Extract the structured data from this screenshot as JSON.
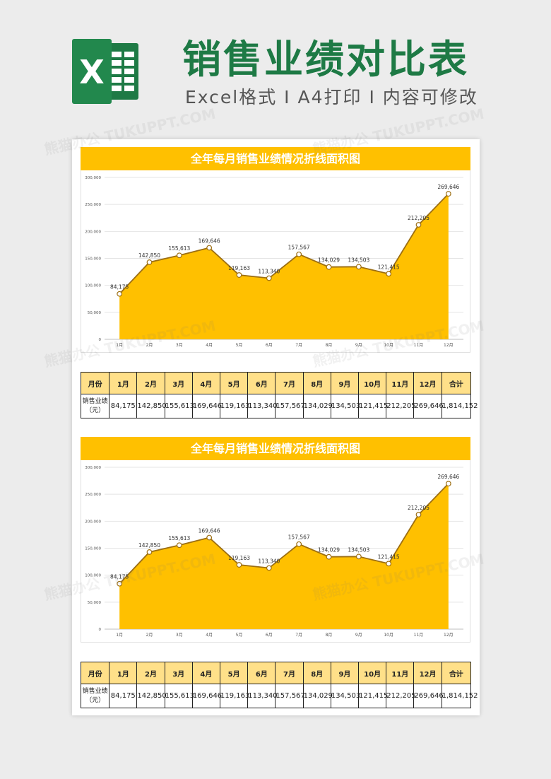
{
  "header": {
    "title": "销售业绩对比表",
    "subtitle": "Excel格式 I A4打印 I 内容可修改",
    "logo_letter": "X"
  },
  "colors": {
    "brand_green": "#1e7a45",
    "accent_yellow": "#ffc000",
    "table_header": "#ffe089"
  },
  "watermark": "熊猫办公 TUKUPPT.COM",
  "charts": [
    {
      "title": "全年每月销售业绩情况折线面积图"
    },
    {
      "title": "全年每月销售业绩情况折线面积图"
    }
  ],
  "chart_data": [
    {
      "type": "area",
      "title": "全年每月销售业绩情况折线面积图",
      "categories": [
        "1月",
        "2月",
        "3月",
        "4月",
        "5月",
        "6月",
        "7月",
        "8月",
        "9月",
        "10月",
        "11月",
        "12月"
      ],
      "values": [
        84175,
        142850,
        155613,
        169646,
        119163,
        113340,
        157567,
        134029,
        134503,
        121415,
        212205,
        269646
      ],
      "data_labels": [
        "84,175",
        "142,850",
        "155,613",
        "169,646",
        "119,163",
        "113,340",
        "157,567",
        "134,029",
        "134,503",
        "121,415",
        "212,205",
        "269,646"
      ],
      "y_ticks": [
        "0",
        "50,000",
        "100,000",
        "150,000",
        "200,000",
        "250,000",
        "300,000"
      ],
      "ylim": [
        0,
        300000
      ],
      "grid": true
    },
    {
      "type": "area",
      "title": "全年每月销售业绩情况折线面积图",
      "categories": [
        "1月",
        "2月",
        "3月",
        "4月",
        "5月",
        "6月",
        "7月",
        "8月",
        "9月",
        "10月",
        "11月",
        "12月"
      ],
      "values": [
        84175,
        142850,
        155613,
        169646,
        119163,
        113340,
        157567,
        134029,
        134503,
        121415,
        212205,
        269646
      ],
      "data_labels": [
        "84,175",
        "142,850",
        "155,613",
        "169,646",
        "119,163",
        "113,340",
        "157,567",
        "134,029",
        "134,503",
        "121,415",
        "212,205",
        "269,646"
      ],
      "y_ticks": [
        "0",
        "50,000",
        "100,000",
        "150,000",
        "200,000",
        "250,000",
        "300,000"
      ],
      "ylim": [
        0,
        300000
      ],
      "grid": true
    }
  ],
  "tables": [
    {
      "header": [
        "月份",
        "1月",
        "2月",
        "3月",
        "4月",
        "5月",
        "6月",
        "7月",
        "8月",
        "9月",
        "10月",
        "11月",
        "12月",
        "合计"
      ],
      "row_label_line1": "销售业绩",
      "row_label_line2": "（元）",
      "values": [
        "84,175",
        "142,850",
        "155,613",
        "169,646",
        "119,163",
        "113,340",
        "157,567",
        "134,029",
        "134,503",
        "121,415",
        "212,205",
        "269,646",
        "1,814,152"
      ]
    },
    {
      "header": [
        "月份",
        "1月",
        "2月",
        "3月",
        "4月",
        "5月",
        "6月",
        "7月",
        "8月",
        "9月",
        "10月",
        "11月",
        "12月",
        "合计"
      ],
      "row_label_line1": "销售业绩",
      "row_label_line2": "（元）",
      "values": [
        "84,175",
        "142,850",
        "155,613",
        "169,646",
        "119,163",
        "113,340",
        "157,567",
        "134,029",
        "134,503",
        "121,415",
        "212,205",
        "269,646",
        "1,814,152"
      ]
    }
  ]
}
